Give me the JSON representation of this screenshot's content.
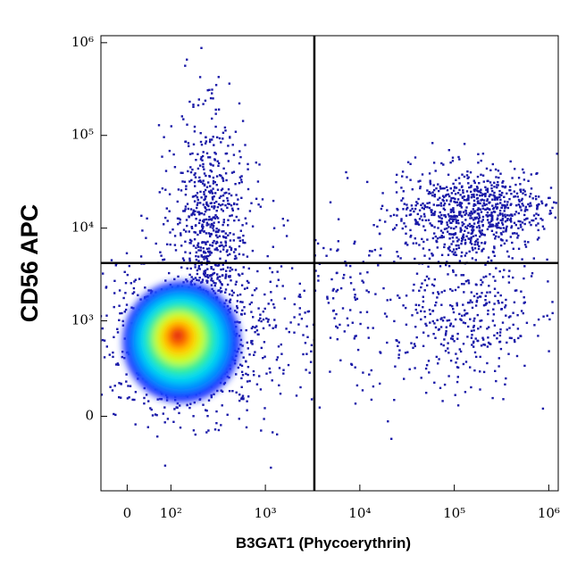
{
  "chart_data": {
    "type": "flow-density",
    "x_label": "B3GAT1 (Phycoerythrin)",
    "y_label": "CD56 APC",
    "scale": "biexponential",
    "xlim": [
      -60,
      1260000
    ],
    "ylim": [
      -780,
      1190000
    ],
    "xticks": [
      0,
      {
        "value": 100,
        "label": "10²"
      },
      {
        "value": 1000,
        "label": "10³"
      },
      {
        "value": 10000,
        "label": "10⁴"
      },
      {
        "value": 100000,
        "label": "10⁵"
      },
      {
        "value": 1000000,
        "label": "10⁶"
      }
    ],
    "yticks": [
      0,
      {
        "value": 1000,
        "label": "10³"
      },
      {
        "value": 10000,
        "label": "10⁴"
      },
      {
        "value": 100000,
        "label": "10⁵"
      },
      {
        "value": 1000000,
        "label": "10⁶"
      }
    ],
    "gates": {
      "x": 3300,
      "y": 4200
    },
    "dot_color": "#1a1aa8",
    "heat_colors": [
      "#1e32ff",
      "#0090ff",
      "#00d8f0",
      "#30f090",
      "#c8ff20",
      "#ffd000",
      "#ff7000",
      "#e01010"
    ],
    "populations": [
      {
        "x": 130,
        "y": 780
      },
      {
        "x": 250,
        "y": 12000
      },
      {
        "x": 150000,
        "y": 15000
      },
      {
        "x": 150000,
        "y": 1000
      },
      {
        "x": 3000,
        "y": 1500
      }
    ]
  }
}
